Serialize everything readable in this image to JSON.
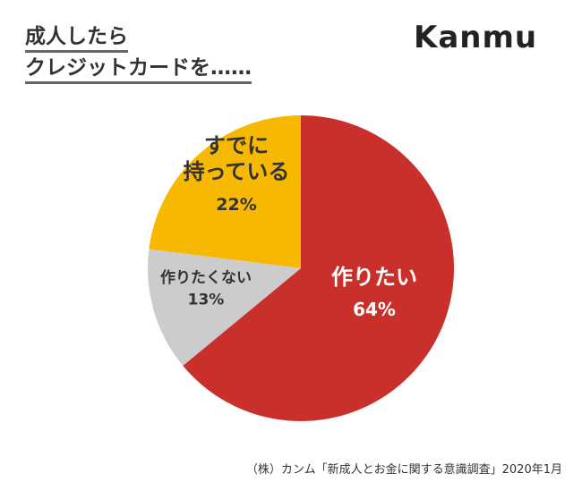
{
  "title": {
    "line1": "成人したら",
    "line2": "クレジットカードを……"
  },
  "logo": "Kanmu",
  "source": "（株）カンム「新成人とお金に関する意識調査」2020年1月",
  "chart_data": {
    "type": "pie",
    "title": "成人したらクレジットカードを……",
    "start": "top",
    "direction": "clockwise",
    "slices": [
      {
        "label": "作りたい",
        "value": 64,
        "value_label": "64%",
        "color": "#C9302C",
        "text_color": "#ffffff"
      },
      {
        "label": "作りたくない",
        "value": 13,
        "value_label": "13%",
        "color": "#CCCCCC",
        "text_color": "#333333"
      },
      {
        "label": "すでに持っている",
        "label_lines": [
          "すでに",
          "持っている"
        ],
        "value": 22,
        "value_label": "22%",
        "color": "#F7B900",
        "text_color": "#333333"
      }
    ]
  }
}
